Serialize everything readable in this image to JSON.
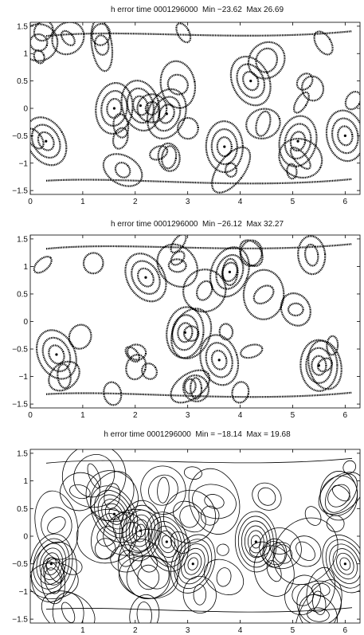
{
  "chart_data": [
    {
      "type": "contour",
      "title": "h error time 0001296000  Min −23.62  Max 26.69",
      "xlim": [
        0,
        6.2832
      ],
      "ylim": [
        -1.5708,
        1.5708
      ],
      "x_ticks": [
        "0",
        "1",
        "2",
        "3",
        "4",
        "5",
        "6"
      ],
      "y_ticks": [
        "1.5",
        "1",
        "0.5",
        "0",
        "−0.5",
        "−1",
        "−1.5"
      ],
      "min": -23.62,
      "max": 26.69,
      "line_style": "thick dotted contours",
      "features": [
        {
          "x": 0.3,
          "y": -0.6,
          "kind": "extremum"
        },
        {
          "x": 1.6,
          "y": 0.0,
          "kind": "extremum"
        },
        {
          "x": 2.1,
          "y": 0.05,
          "kind": "extremum"
        },
        {
          "x": 2.6,
          "y": -0.1,
          "kind": "extremum"
        },
        {
          "x": 3.7,
          "y": -0.7,
          "kind": "extremum"
        },
        {
          "x": 4.2,
          "y": 0.5,
          "kind": "extremum"
        },
        {
          "x": 5.1,
          "y": -0.6,
          "kind": "extremum"
        },
        {
          "x": 6.0,
          "y": -0.5,
          "kind": "extremum"
        }
      ]
    },
    {
      "type": "contour",
      "title": "h error time 0001296000  Min −26.12  Max 32.27",
      "xlim": [
        0,
        6.2832
      ],
      "ylim": [
        -1.5708,
        1.5708
      ],
      "x_ticks": [
        "0",
        "1",
        "2",
        "3",
        "4",
        "5",
        "6"
      ],
      "y_ticks": [
        "1.5",
        "1",
        "0.5",
        "0",
        "−0.5",
        "−1",
        "−1.5"
      ],
      "min": -26.12,
      "max": 32.27,
      "line_style": "thick dotted contours",
      "features": [
        {
          "x": 2.2,
          "y": 0.8,
          "kind": "extremum"
        },
        {
          "x": 2.95,
          "y": -0.2,
          "kind": "extremum"
        },
        {
          "x": 3.6,
          "y": -0.7,
          "kind": "extremum"
        },
        {
          "x": 3.8,
          "y": 0.9,
          "kind": "extremum"
        },
        {
          "x": 5.5,
          "y": -0.8,
          "kind": "extremum"
        },
        {
          "x": 0.5,
          "y": -0.6,
          "kind": "extremum"
        }
      ]
    },
    {
      "type": "contour",
      "title": "h error time 0001296000  Min = −18.14  Max = 19.68",
      "xlim": [
        0,
        6.2832
      ],
      "ylim": [
        -1.5708,
        1.5708
      ],
      "x_ticks": [
        "1",
        "2",
        "3",
        "4",
        "5",
        "6"
      ],
      "y_ticks": [
        "1.5",
        "1",
        "0.5",
        "0",
        "−0.5",
        "−1",
        "−1.5"
      ],
      "min": -18.14,
      "max": 19.68,
      "line_style": "thin solid contours",
      "features": [
        {
          "x": 1.6,
          "y": 0.4,
          "kind": "extremum"
        },
        {
          "x": 2.1,
          "y": 0.1,
          "kind": "extremum"
        },
        {
          "x": 2.6,
          "y": -0.1,
          "kind": "extremum"
        },
        {
          "x": 3.1,
          "y": -0.5,
          "kind": "extremum"
        },
        {
          "x": 4.3,
          "y": -0.1,
          "kind": "extremum"
        },
        {
          "x": 6.0,
          "y": -0.5,
          "kind": "extremum"
        },
        {
          "x": 0.4,
          "y": -0.5,
          "kind": "extremum"
        }
      ]
    }
  ]
}
